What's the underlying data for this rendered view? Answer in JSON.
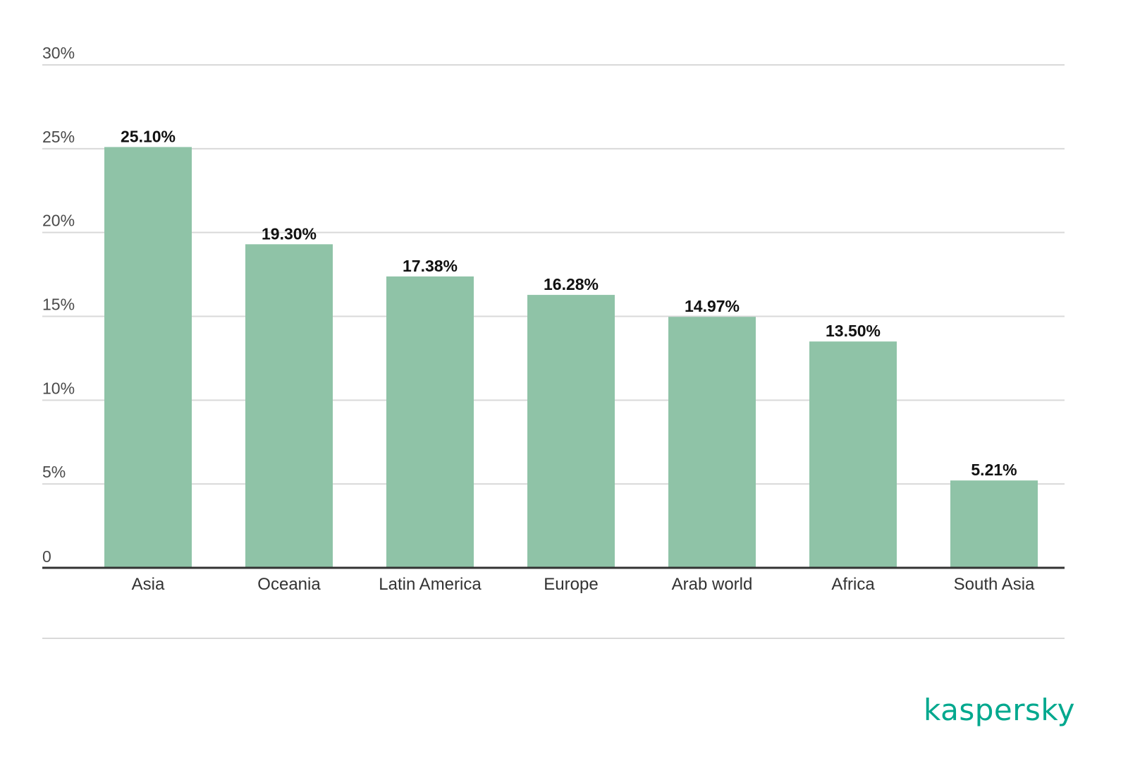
{
  "brand": {
    "logo_text": "kaspersky",
    "color": "#00a88e"
  },
  "colors": {
    "bar": "#8fc3a7",
    "grid": "#d9d9d9",
    "axis": "#333333"
  },
  "chart_data": {
    "type": "bar",
    "categories": [
      "Asia",
      "Oceania",
      "Latin America",
      "Europe",
      "Arab world",
      "Africa",
      "South Asia"
    ],
    "values": [
      25.1,
      19.3,
      17.38,
      16.28,
      14.97,
      13.5,
      5.21
    ],
    "value_labels": [
      "25.10%",
      "19.30%",
      "17.38%",
      "16.28%",
      "14.97%",
      "13.50%",
      "5.21%"
    ],
    "yticks": [
      0,
      5,
      10,
      15,
      20,
      25,
      30
    ],
    "ytick_labels": [
      "0",
      "5%",
      "10%",
      "15%",
      "20%",
      "25%",
      "30%"
    ],
    "ylim": [
      0,
      30
    ],
    "grid": true,
    "legend": "none",
    "title": "",
    "xlabel": "",
    "ylabel": ""
  }
}
